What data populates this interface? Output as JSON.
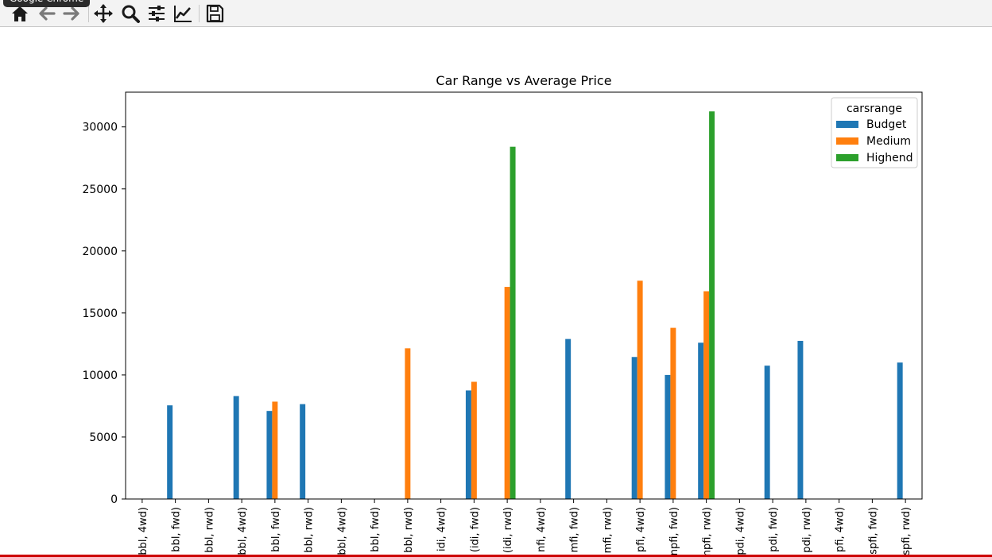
{
  "window": {
    "tooltip": "Google Chrome"
  },
  "toolbar": {
    "items": [
      {
        "id": "home",
        "icon": "home-icon"
      },
      {
        "id": "back",
        "icon": "arrow-left-icon"
      },
      {
        "id": "forward",
        "icon": "arrow-right-icon"
      },
      {
        "id": "pan",
        "icon": "move-arrows-icon"
      },
      {
        "id": "zoom",
        "icon": "magnifier-icon"
      },
      {
        "id": "configure",
        "icon": "sliders-icon"
      },
      {
        "id": "edit-axes",
        "icon": "line-chart-icon"
      },
      {
        "id": "save",
        "icon": "floppy-disk-icon"
      }
    ]
  },
  "chart_data": {
    "type": "bar",
    "title": "Car Range vs Average Price",
    "xlabel": "",
    "ylabel": "",
    "ylim": [
      0,
      32800
    ],
    "yticks": [
      0,
      5000,
      10000,
      15000,
      20000,
      25000,
      30000
    ],
    "grid": false,
    "legend": {
      "title": "carsrange",
      "placement": "top-right"
    },
    "categories": [
      "bbl, 4wd)",
      "bbl, fwd)",
      "bbl, rwd)",
      "bbl, 4wd)",
      "bbl, fwd)",
      "bbl, rwd)",
      "bbl, 4wd)",
      "bbl, fwd)",
      "bbl, rwd)",
      "idi, 4wd)",
      "(idi, fwd)",
      "(idi, rwd)",
      "nfi, 4wd)",
      "mfi, fwd)",
      "mfi, rwd)",
      "pfi, 4wd)",
      "npfi, fwd)",
      "npfi, rwd)",
      "pdi, 4wd)",
      "pdi, fwd)",
      "pdi, rwd)",
      "pfi, 4wd)",
      "spfi, fwd)",
      "spfi, rwd)"
    ],
    "series": [
      {
        "name": "Budget",
        "color": "#1f77b4",
        "values": [
          0,
          7550,
          0,
          8300,
          7100,
          7650,
          0,
          0,
          0,
          0,
          8750,
          0,
          0,
          12900,
          0,
          11450,
          10000,
          12600,
          0,
          10750,
          12750,
          0,
          0,
          11000
        ]
      },
      {
        "name": "Medium",
        "color": "#ff7f0e",
        "values": [
          0,
          0,
          0,
          0,
          7850,
          0,
          0,
          0,
          12150,
          0,
          9450,
          17100,
          0,
          0,
          0,
          17600,
          13800,
          16750,
          0,
          0,
          0,
          0,
          0,
          0
        ]
      },
      {
        "name": "Highend",
        "color": "#2ca02c",
        "values": [
          0,
          0,
          0,
          0,
          0,
          0,
          0,
          0,
          0,
          0,
          0,
          28400,
          0,
          0,
          0,
          0,
          0,
          31250,
          0,
          0,
          0,
          0,
          0,
          0
        ]
      }
    ]
  }
}
